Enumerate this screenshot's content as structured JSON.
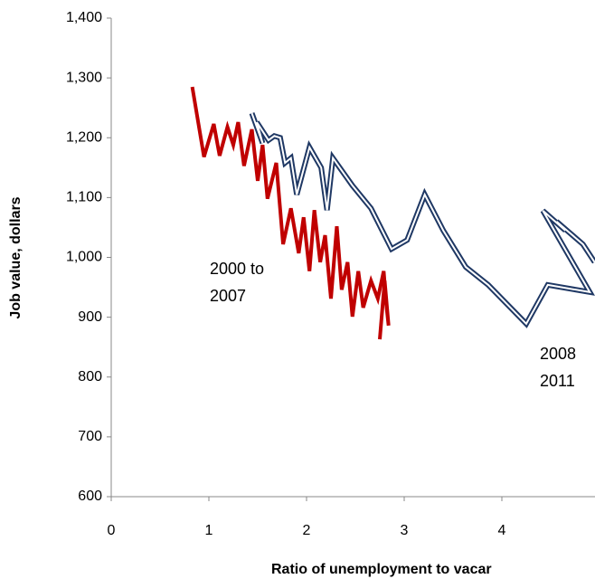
{
  "chart_data": {
    "type": "line",
    "x_label": "Ratio of unemployment to vacar",
    "y_label": "Job value, dollars",
    "annotations": [
      "2000 to",
      "2007",
      "2008",
      "2011"
    ],
    "xlim": [
      0,
      5
    ],
    "xticks": [
      0,
      1,
      2,
      3,
      4
    ],
    "ylim": [
      600,
      1400
    ],
    "yticks": [
      {
        "value": 600,
        "label": "600"
      },
      {
        "value": 700,
        "label": "700"
      },
      {
        "value": 800,
        "label": "800"
      },
      {
        "value": 900,
        "label": "900"
      },
      {
        "value": 1000,
        "label": "1,000"
      },
      {
        "value": 1100,
        "label": "1,100"
      },
      {
        "value": 1200,
        "label": "1,200"
      },
      {
        "value": 1300,
        "label": "1,300"
      },
      {
        "value": 1400,
        "label": "1,400"
      }
    ],
    "series": [
      {
        "color": "#c00000",
        "style": "single",
        "x": [
          0.83,
          0.95,
          1.05,
          1.11,
          1.19,
          1.25,
          1.3,
          1.36,
          1.44,
          1.5,
          1.55,
          1.6,
          1.69,
          1.76,
          1.84,
          1.92,
          1.97,
          2.03,
          2.08,
          2.14,
          2.19,
          2.25,
          2.31,
          2.36,
          2.42,
          2.47,
          2.53,
          2.58,
          2.66,
          2.73,
          2.79,
          2.82,
          2.84,
          2.8,
          2.75
        ],
        "values": [
          1285,
          1168,
          1223,
          1170,
          1218,
          1188,
          1226,
          1153,
          1214,
          1128,
          1188,
          1098,
          1158,
          1022,
          1082,
          1007,
          1067,
          977,
          1079,
          992,
          1037,
          931,
          1052,
          946,
          992,
          901,
          977,
          916,
          961,
          931,
          977,
          916,
          886,
          961,
          863
        ]
      },
      {
        "color": "#1f3864",
        "style": "double",
        "x": [
          1.44,
          1.55,
          1.49,
          1.61,
          1.67,
          1.73,
          1.78,
          1.84,
          1.9,
          2.03,
          2.15,
          2.21,
          2.27,
          2.47,
          2.66,
          2.87,
          3.03,
          3.21,
          3.4,
          3.63,
          3.86,
          4.25,
          4.47,
          4.9,
          4.42,
          4.65,
          4.56,
          4.83,
          4.95
        ],
        "values": [
          1241,
          1191,
          1226,
          1196,
          1203,
          1200,
          1158,
          1166,
          1105,
          1184,
          1150,
          1079,
          1166,
          1120,
          1082,
          1014,
          1029,
          1105,
          1045,
          984,
          954,
          889,
          954,
          942,
          1078,
          1045,
          1060,
          1022,
          992
        ]
      }
    ]
  }
}
